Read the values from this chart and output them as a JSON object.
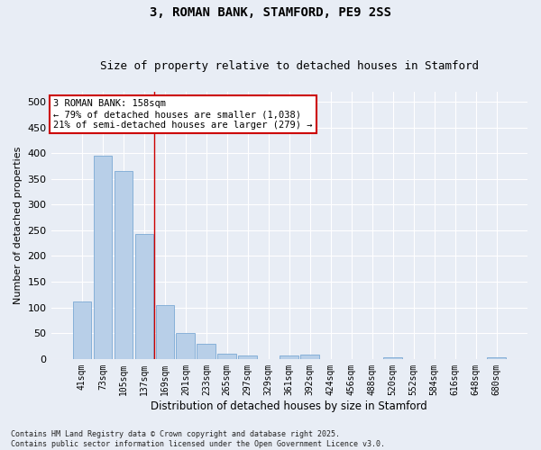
{
  "title": "3, ROMAN BANK, STAMFORD, PE9 2SS",
  "subtitle": "Size of property relative to detached houses in Stamford",
  "xlabel": "Distribution of detached houses by size in Stamford",
  "ylabel": "Number of detached properties",
  "categories": [
    "41sqm",
    "73sqm",
    "105sqm",
    "137sqm",
    "169sqm",
    "201sqm",
    "233sqm",
    "265sqm",
    "297sqm",
    "329sqm",
    "361sqm",
    "392sqm",
    "424sqm",
    "456sqm",
    "488sqm",
    "520sqm",
    "552sqm",
    "584sqm",
    "616sqm",
    "648sqm",
    "680sqm"
  ],
  "bar_values": [
    112,
    395,
    365,
    242,
    105,
    50,
    30,
    10,
    7,
    0,
    7,
    8,
    0,
    0,
    0,
    3,
    0,
    0,
    0,
    0,
    3
  ],
  "bar_color": "#b8cfe8",
  "bar_edge_color": "#6a9ecf",
  "bg_color": "#e8edf5",
  "grid_color": "#ffffff",
  "vline_color": "#cc0000",
  "annotation_text": "3 ROMAN BANK: 158sqm\n← 79% of detached houses are smaller (1,038)\n21% of semi-detached houses are larger (279) →",
  "annotation_box_color": "#ffffff",
  "annotation_box_edge": "#cc0000",
  "footnote": "Contains HM Land Registry data © Crown copyright and database right 2025.\nContains public sector information licensed under the Open Government Licence v3.0.",
  "ylim": [
    0,
    520
  ],
  "yticks": [
    0,
    50,
    100,
    150,
    200,
    250,
    300,
    350,
    400,
    450,
    500
  ]
}
